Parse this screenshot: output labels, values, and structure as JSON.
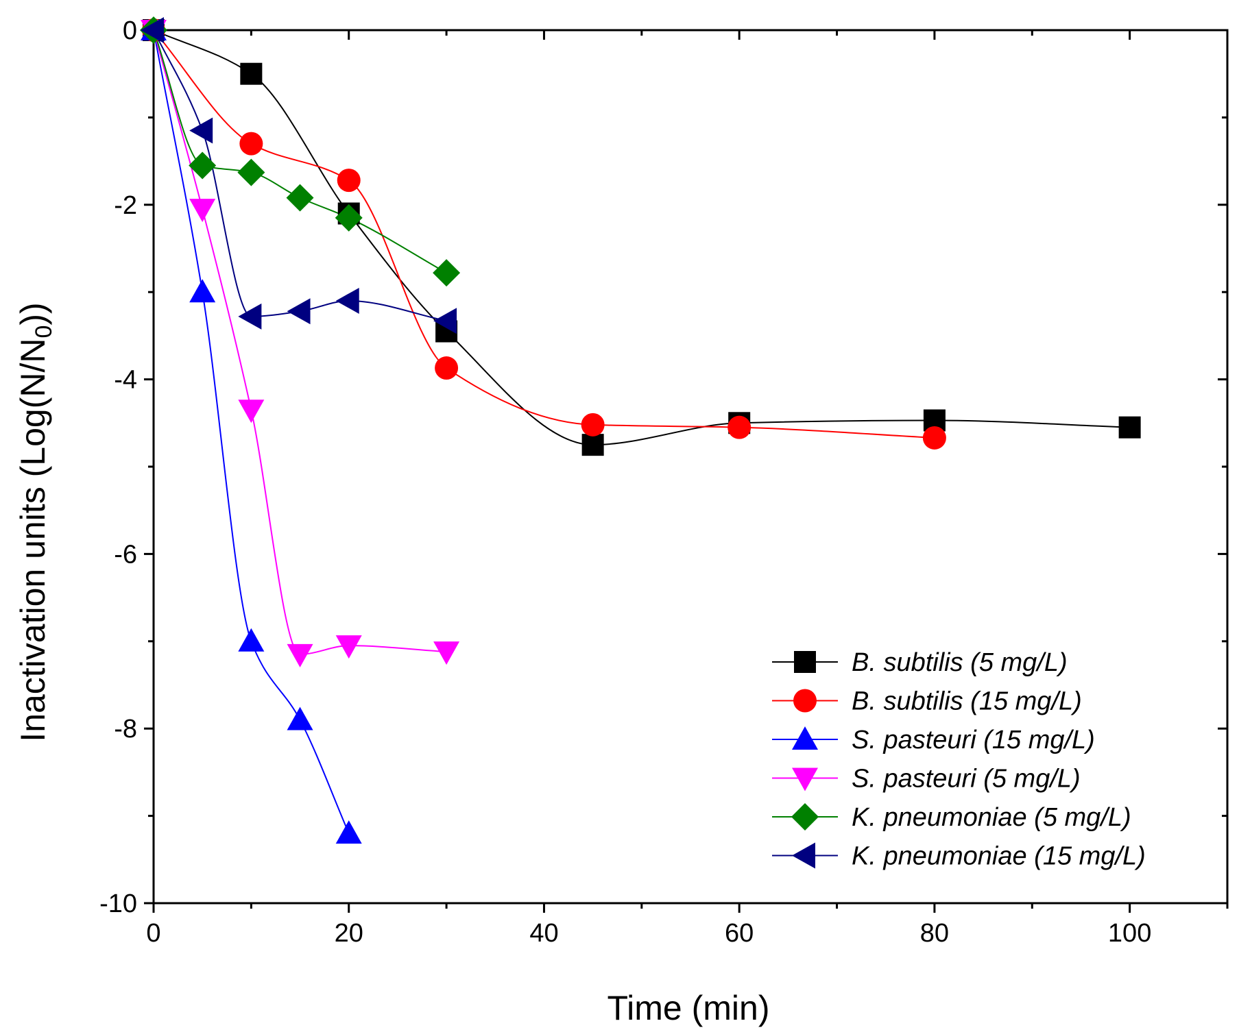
{
  "chart_data": {
    "type": "scatter",
    "title": "",
    "xlabel": "Time (min)",
    "ylabel": "Inactivation units (Log(N/N0))",
    "ylabel_parts": {
      "main": "Inactivation units (Log(N/N",
      "sub": "0",
      "end": "))"
    },
    "xlim": [
      0,
      110
    ],
    "ylim": [
      -10,
      0
    ],
    "xticks": [
      0,
      20,
      40,
      60,
      80,
      100
    ],
    "yticks": [
      0,
      -2,
      -4,
      -6,
      -8,
      -10
    ],
    "xtick_labels": [
      "0",
      "20",
      "40",
      "60",
      "80",
      "100"
    ],
    "ytick_labels": [
      "0",
      "-2",
      "-4",
      "-6",
      "-8",
      "-10"
    ],
    "grid": false,
    "legend_position": "bottom-right",
    "series": [
      {
        "name": "B. subtilis (5 mg/L)",
        "color": "#000000",
        "marker": "square",
        "x": [
          0,
          10,
          20,
          30,
          45,
          60,
          80,
          100
        ],
        "y": [
          0,
          -0.5,
          -2.1,
          -3.45,
          -4.75,
          -4.5,
          -4.47,
          -4.55
        ]
      },
      {
        "name": "B. subtilis (15 mg/L)",
        "color": "#ff0000",
        "marker": "circle",
        "x": [
          0,
          10,
          20,
          30,
          45,
          60,
          80
        ],
        "y": [
          0,
          -1.3,
          -1.72,
          -3.87,
          -4.52,
          -4.55,
          -4.67
        ]
      },
      {
        "name": "S. pasteuri (15 mg/L)",
        "color": "#0000ff",
        "marker": "triangle-up",
        "x": [
          0,
          5,
          10,
          15,
          20
        ],
        "y": [
          0,
          -3.0,
          -7.0,
          -7.9,
          -9.2
        ]
      },
      {
        "name": "S. pasteuri (5 mg/L)",
        "color": "#ff00ff",
        "marker": "triangle-down",
        "x": [
          0,
          5,
          10,
          15,
          20,
          30
        ],
        "y": [
          0,
          -2.05,
          -4.35,
          -7.15,
          -7.05,
          -7.12
        ]
      },
      {
        "name": "K. pneumoniae (5 mg/L)",
        "color": "#008000",
        "marker": "diamond",
        "x": [
          0,
          5,
          10,
          15,
          20,
          30
        ],
        "y": [
          0,
          -1.55,
          -1.63,
          -1.92,
          -2.15,
          -2.78
        ]
      },
      {
        "name": "K. pneumoniae (15 mg/L)",
        "color": "#000080",
        "marker": "triangle-left",
        "x": [
          0,
          5,
          10,
          15,
          20,
          30
        ],
        "y": [
          0,
          -1.15,
          -3.28,
          -3.22,
          -3.1,
          -3.33
        ]
      }
    ]
  }
}
